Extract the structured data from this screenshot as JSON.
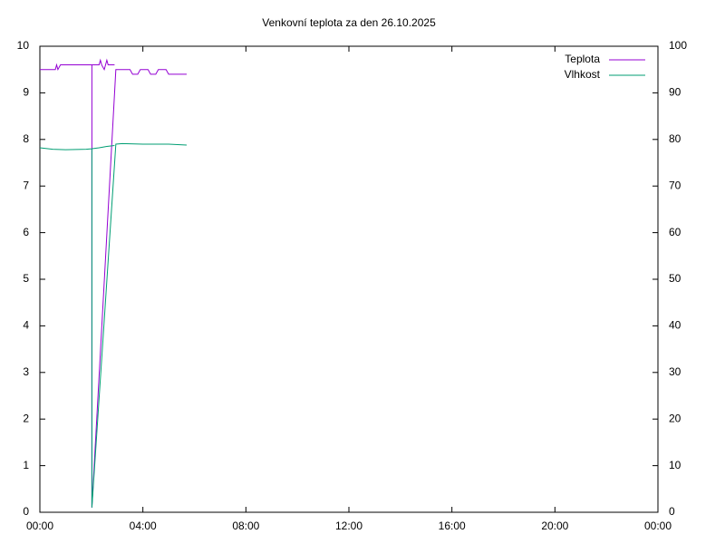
{
  "chart_data": {
    "type": "line",
    "title": "Venkovní teplota za den 26.10.2025",
    "xlim": [
      0,
      24
    ],
    "xticks": [
      {
        "value": 0,
        "label": "00:00"
      },
      {
        "value": 4,
        "label": "04:00"
      },
      {
        "value": 8,
        "label": "08:00"
      },
      {
        "value": 12,
        "label": "12:00"
      },
      {
        "value": 16,
        "label": "16:00"
      },
      {
        "value": 20,
        "label": "20:00"
      },
      {
        "value": 24,
        "label": "00:00"
      }
    ],
    "ylim": [
      0,
      10
    ],
    "yticks": [
      0,
      1,
      2,
      3,
      4,
      5,
      6,
      7,
      8,
      9,
      10
    ],
    "y2lim": [
      0,
      100
    ],
    "y2ticks": [
      0,
      10,
      20,
      30,
      40,
      50,
      60,
      70,
      80,
      90,
      100
    ],
    "legend": "top-right",
    "series": [
      {
        "name": "Teplota",
        "color": "#9400d3",
        "axis": "y",
        "x": [
          0,
          0.6,
          0.65,
          0.7,
          0.8,
          1.0,
          1.5,
          2.0,
          2.3,
          2.35,
          2.4,
          2.5,
          2.6,
          2.65,
          2.7,
          2.9,
          null,
          2.02,
          2.02,
          2.95,
          3.0,
          3.5,
          3.6,
          3.8,
          3.9,
          4.2,
          4.3,
          4.5,
          4.6,
          4.9,
          5.0,
          5.7
        ],
        "values": [
          9.5,
          9.5,
          9.6,
          9.5,
          9.6,
          9.6,
          9.6,
          9.6,
          9.6,
          9.7,
          9.6,
          9.5,
          9.7,
          9.6,
          9.6,
          9.6,
          null,
          9.6,
          0.1,
          9.5,
          9.5,
          9.5,
          9.4,
          9.4,
          9.5,
          9.5,
          9.4,
          9.4,
          9.5,
          9.5,
          9.4,
          9.4
        ]
      },
      {
        "name": "Vlhkost",
        "color": "#009e73",
        "axis": "y2",
        "x": [
          0,
          0.5,
          1.0,
          1.8,
          2.0,
          2.3,
          2.6,
          2.9,
          null,
          2.02,
          2.02,
          2.95,
          3.2,
          4.0,
          5.0,
          5.7
        ],
        "values": [
          78.2,
          77.9,
          77.8,
          77.9,
          78.0,
          78.2,
          78.5,
          78.7,
          null,
          78.0,
          1,
          79,
          79.1,
          79.0,
          79.0,
          78.8
        ]
      }
    ]
  }
}
